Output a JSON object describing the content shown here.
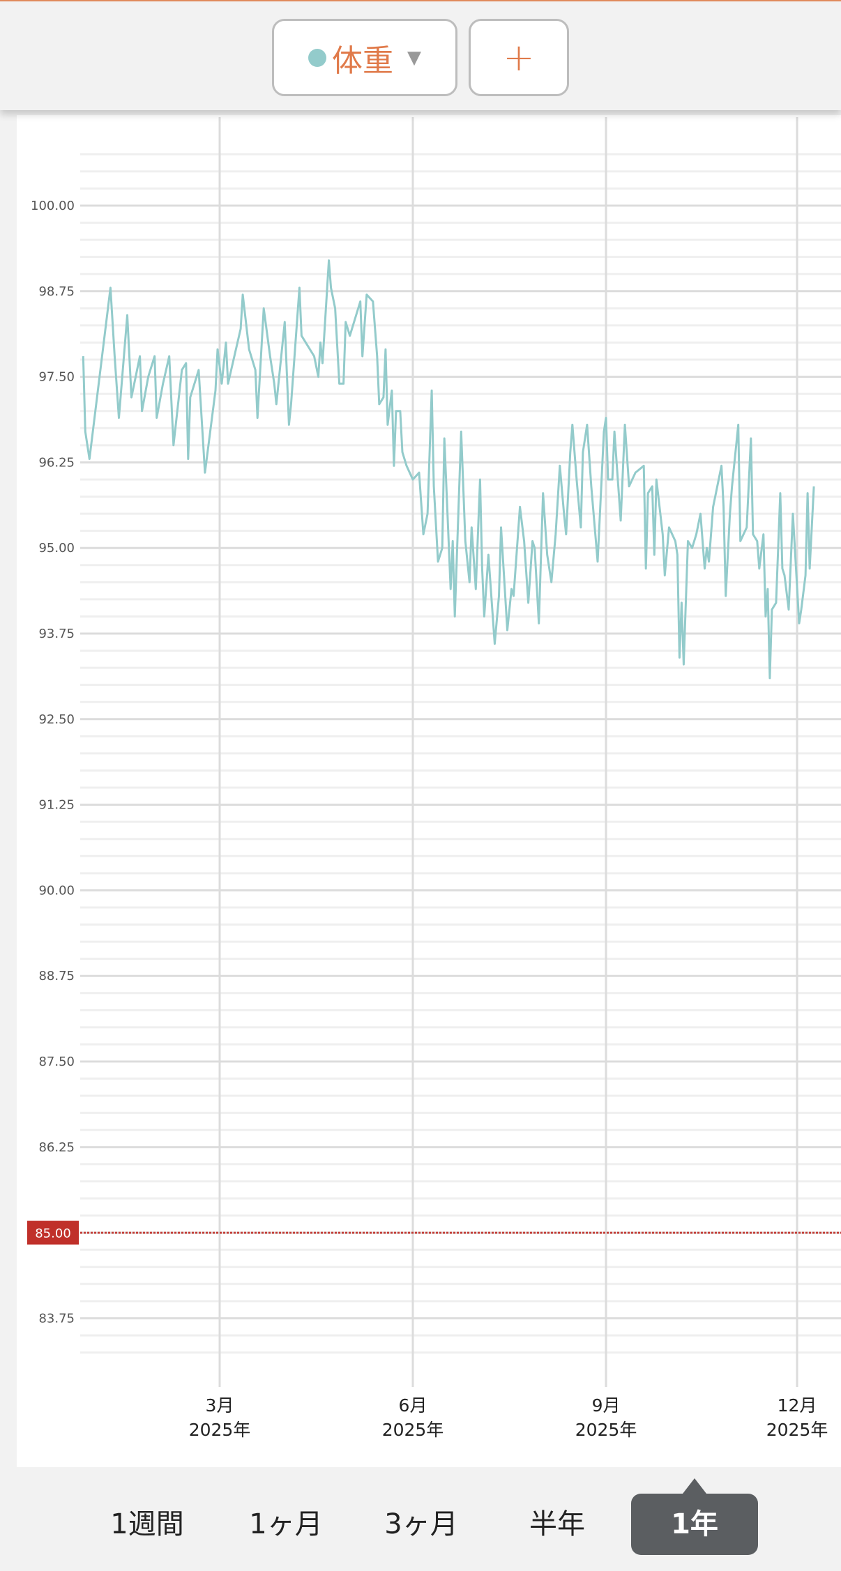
{
  "header": {
    "metric_label": "体重",
    "metric_dot_color": "#93cbcb",
    "dropdown_icon": "triangle-down-icon",
    "add_label": "+"
  },
  "tabs": [
    {
      "label": "1週間",
      "active": false
    },
    {
      "label": "1ヶ月",
      "active": false
    },
    {
      "label": "3ヶ月",
      "active": false
    },
    {
      "label": "半年",
      "active": false
    },
    {
      "label": "1年",
      "active": true
    }
  ],
  "chart_data": {
    "type": "line",
    "title": "",
    "xlabel": "",
    "ylabel": "",
    "line_color": "#93cbcb",
    "grid": true,
    "ylim": [
      83.0,
      101.25
    ],
    "y_ticks": [
      "83.75",
      "86.25",
      "87.50",
      "88.75",
      "90.00",
      "91.25",
      "92.50",
      "93.75",
      "95.00",
      "96.25",
      "97.50",
      "98.75",
      "100.00"
    ],
    "x_ticks": [
      {
        "date": "2025-03-01",
        "month": "3月",
        "year": "2025年"
      },
      {
        "date": "2025-06-01",
        "month": "6月",
        "year": "2025年"
      },
      {
        "date": "2025-09-01",
        "month": "9月",
        "year": "2025年"
      },
      {
        "date": "2025-12-01",
        "month": "12月",
        "year": "2025年"
      }
    ],
    "target": {
      "value": 85.0,
      "label": "85.00",
      "color": "#c0302a"
    },
    "points": [
      [
        "2024-12-26",
        97.8
      ],
      [
        "2024-12-27",
        96.7
      ],
      [
        "2024-12-29",
        96.3
      ],
      [
        "2025-01-08",
        98.8
      ],
      [
        "2025-01-10",
        97.8
      ],
      [
        "2025-01-12",
        96.9
      ],
      [
        "2025-01-16",
        98.4
      ],
      [
        "2025-01-18",
        97.2
      ],
      [
        "2025-01-22",
        97.8
      ],
      [
        "2025-01-23",
        97.0
      ],
      [
        "2025-01-26",
        97.5
      ],
      [
        "2025-01-29",
        97.8
      ],
      [
        "2025-01-30",
        96.9
      ],
      [
        "2025-02-02",
        97.4
      ],
      [
        "2025-02-05",
        97.8
      ],
      [
        "2025-02-07",
        96.5
      ],
      [
        "2025-02-11",
        97.6
      ],
      [
        "2025-02-13",
        97.7
      ],
      [
        "2025-02-14",
        96.3
      ],
      [
        "2025-02-15",
        97.2
      ],
      [
        "2025-02-19",
        97.6
      ],
      [
        "2025-02-22",
        96.1
      ],
      [
        "2025-02-27",
        97.3
      ],
      [
        "2025-02-28",
        97.9
      ],
      [
        "2025-03-02",
        97.4
      ],
      [
        "2025-03-04",
        98.0
      ],
      [
        "2025-03-05",
        97.4
      ],
      [
        "2025-03-11",
        98.2
      ],
      [
        "2025-03-12",
        98.7
      ],
      [
        "2025-03-15",
        97.9
      ],
      [
        "2025-03-18",
        97.6
      ],
      [
        "2025-03-19",
        96.9
      ],
      [
        "2025-03-22",
        98.5
      ],
      [
        "2025-03-25",
        97.8
      ],
      [
        "2025-03-27",
        97.4
      ],
      [
        "2025-03-28",
        97.1
      ],
      [
        "2025-04-01",
        98.3
      ],
      [
        "2025-04-03",
        96.8
      ],
      [
        "2025-04-04",
        97.1
      ],
      [
        "2025-04-08",
        98.8
      ],
      [
        "2025-04-09",
        98.1
      ],
      [
        "2025-04-15",
        97.8
      ],
      [
        "2025-04-17",
        97.5
      ],
      [
        "2025-04-18",
        98.0
      ],
      [
        "2025-04-19",
        97.7
      ],
      [
        "2025-04-22",
        99.2
      ],
      [
        "2025-04-23",
        98.8
      ],
      [
        "2025-04-25",
        98.5
      ],
      [
        "2025-04-27",
        97.4
      ],
      [
        "2025-04-29",
        97.4
      ],
      [
        "2025-04-30",
        98.3
      ],
      [
        "2025-05-02",
        98.1
      ],
      [
        "2025-05-07",
        98.6
      ],
      [
        "2025-05-08",
        97.8
      ],
      [
        "2025-05-10",
        98.7
      ],
      [
        "2025-05-13",
        98.6
      ],
      [
        "2025-05-15",
        97.8
      ],
      [
        "2025-05-16",
        97.1
      ],
      [
        "2025-05-18",
        97.2
      ],
      [
        "2025-05-19",
        97.9
      ],
      [
        "2025-05-20",
        96.8
      ],
      [
        "2025-05-22",
        97.3
      ],
      [
        "2025-05-23",
        96.2
      ],
      [
        "2025-05-24",
        97.0
      ],
      [
        "2025-05-26",
        97.0
      ],
      [
        "2025-05-27",
        96.4
      ],
      [
        "2025-05-29",
        96.2
      ],
      [
        "2025-06-01",
        96.0
      ],
      [
        "2025-06-04",
        96.1
      ],
      [
        "2025-06-06",
        95.2
      ],
      [
        "2025-06-08",
        95.5
      ],
      [
        "2025-06-10",
        97.3
      ],
      [
        "2025-06-11",
        95.9
      ],
      [
        "2025-06-13",
        94.8
      ],
      [
        "2025-06-15",
        95.0
      ],
      [
        "2025-06-16",
        96.6
      ],
      [
        "2025-06-19",
        94.4
      ],
      [
        "2025-06-20",
        95.1
      ],
      [
        "2025-06-21",
        94.0
      ],
      [
        "2025-06-24",
        96.7
      ],
      [
        "2025-06-26",
        95.1
      ],
      [
        "2025-06-28",
        94.5
      ],
      [
        "2025-06-29",
        95.3
      ],
      [
        "2025-07-01",
        94.4
      ],
      [
        "2025-07-03",
        96.0
      ],
      [
        "2025-07-04",
        94.7
      ],
      [
        "2025-07-05",
        94.0
      ],
      [
        "2025-07-07",
        94.9
      ],
      [
        "2025-07-10",
        93.6
      ],
      [
        "2025-07-12",
        94.3
      ],
      [
        "2025-07-13",
        95.3
      ],
      [
        "2025-07-16",
        93.8
      ],
      [
        "2025-07-18",
        94.4
      ],
      [
        "2025-07-19",
        94.3
      ],
      [
        "2025-07-22",
        95.6
      ],
      [
        "2025-07-24",
        95.1
      ],
      [
        "2025-07-26",
        94.2
      ],
      [
        "2025-07-28",
        95.1
      ],
      [
        "2025-07-29",
        95.0
      ],
      [
        "2025-07-31",
        93.9
      ],
      [
        "2025-08-02",
        95.8
      ],
      [
        "2025-08-04",
        94.9
      ],
      [
        "2025-08-06",
        94.5
      ],
      [
        "2025-08-08",
        95.2
      ],
      [
        "2025-08-10",
        96.2
      ],
      [
        "2025-08-12",
        95.5
      ],
      [
        "2025-08-13",
        95.2
      ],
      [
        "2025-08-15",
        96.4
      ],
      [
        "2025-08-16",
        96.8
      ],
      [
        "2025-08-18",
        96.0
      ],
      [
        "2025-08-20",
        95.3
      ],
      [
        "2025-08-21",
        96.4
      ],
      [
        "2025-08-23",
        96.8
      ],
      [
        "2025-08-25",
        95.9
      ],
      [
        "2025-08-28",
        94.8
      ],
      [
        "2025-08-31",
        96.7
      ],
      [
        "2025-09-01",
        96.9
      ],
      [
        "2025-09-02",
        96.0
      ],
      [
        "2025-09-04",
        96.0
      ],
      [
        "2025-09-05",
        96.7
      ],
      [
        "2025-09-08",
        95.4
      ],
      [
        "2025-09-10",
        96.8
      ],
      [
        "2025-09-12",
        95.9
      ],
      [
        "2025-09-15",
        96.1
      ],
      [
        "2025-09-19",
        96.2
      ],
      [
        "2025-09-20",
        94.7
      ],
      [
        "2025-09-21",
        95.8
      ],
      [
        "2025-09-23",
        95.9
      ],
      [
        "2025-09-24",
        94.9
      ],
      [
        "2025-09-25",
        96.0
      ],
      [
        "2025-09-28",
        95.2
      ],
      [
        "2025-09-29",
        94.6
      ],
      [
        "2025-10-01",
        95.3
      ],
      [
        "2025-10-04",
        95.1
      ],
      [
        "2025-10-05",
        94.9
      ],
      [
        "2025-10-06",
        93.4
      ],
      [
        "2025-10-07",
        94.2
      ],
      [
        "2025-10-08",
        93.3
      ],
      [
        "2025-10-10",
        95.1
      ],
      [
        "2025-10-12",
        95.0
      ],
      [
        "2025-10-14",
        95.2
      ],
      [
        "2025-10-16",
        95.5
      ],
      [
        "2025-10-18",
        94.7
      ],
      [
        "2025-10-19",
        95.0
      ],
      [
        "2025-10-20",
        94.8
      ],
      [
        "2025-10-22",
        95.6
      ],
      [
        "2025-10-24",
        95.9
      ],
      [
        "2025-10-26",
        96.2
      ],
      [
        "2025-10-27",
        95.6
      ],
      [
        "2025-10-28",
        94.3
      ],
      [
        "2025-10-30",
        95.5
      ],
      [
        "2025-10-31",
        95.9
      ],
      [
        "2025-11-03",
        96.8
      ],
      [
        "2025-11-04",
        95.1
      ],
      [
        "2025-11-07",
        95.3
      ],
      [
        "2025-11-09",
        96.6
      ],
      [
        "2025-11-10",
        95.2
      ],
      [
        "2025-11-12",
        95.1
      ],
      [
        "2025-11-13",
        94.7
      ],
      [
        "2025-11-15",
        95.2
      ],
      [
        "2025-11-16",
        94.0
      ],
      [
        "2025-11-17",
        94.4
      ],
      [
        "2025-11-18",
        93.1
      ],
      [
        "2025-11-19",
        94.1
      ],
      [
        "2025-11-21",
        94.2
      ],
      [
        "2025-11-23",
        95.8
      ],
      [
        "2025-11-24",
        94.7
      ],
      [
        "2025-11-25",
        94.6
      ],
      [
        "2025-11-27",
        94.1
      ],
      [
        "2025-11-29",
        95.5
      ],
      [
        "2025-12-02",
        93.9
      ],
      [
        "2025-12-03",
        94.1
      ],
      [
        "2025-12-05",
        94.6
      ],
      [
        "2025-12-06",
        95.8
      ],
      [
        "2025-12-07",
        94.7
      ],
      [
        "2025-12-09",
        95.9
      ]
    ]
  }
}
